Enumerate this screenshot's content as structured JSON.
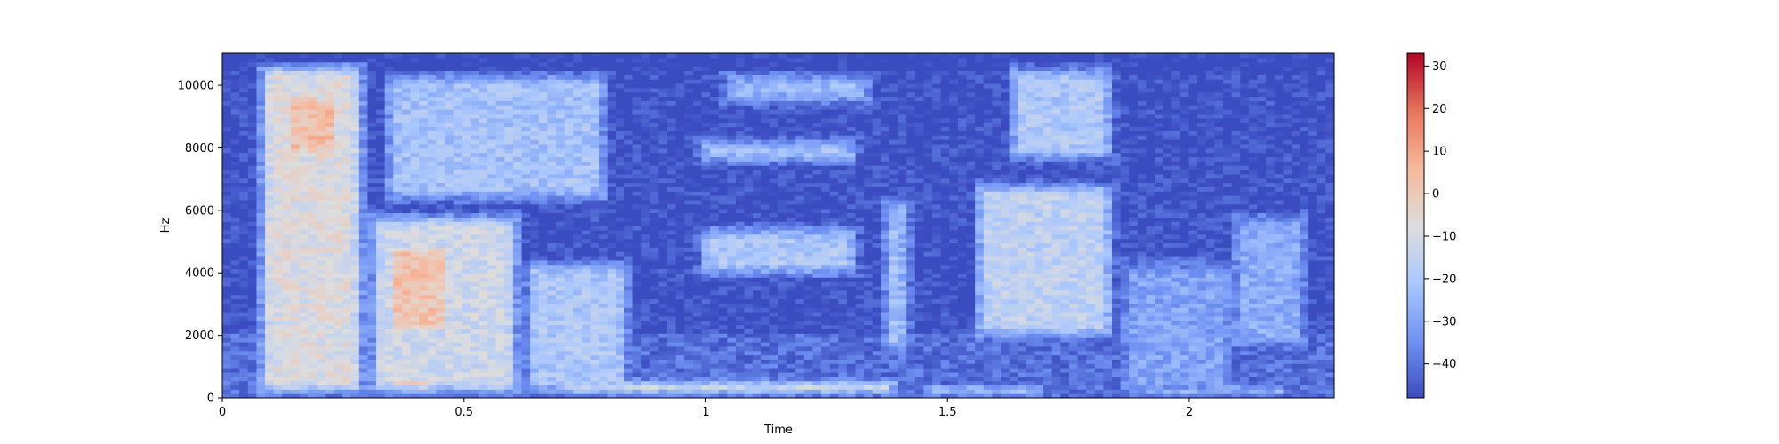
{
  "chart_data": {
    "type": "heatmap",
    "title": "",
    "xlabel": "Time",
    "ylabel": "Hz",
    "xlim": [
      0,
      2.3
    ],
    "ylim": [
      0,
      11025
    ],
    "x_ticks": [
      0,
      0.5,
      1,
      1.5,
      2
    ],
    "x_tick_labels": [
      "0",
      "0.5",
      "1",
      "1.5",
      "2"
    ],
    "y_ticks": [
      0,
      2000,
      4000,
      6000,
      8000,
      10000
    ],
    "y_tick_labels": [
      "0",
      "2000",
      "4000",
      "6000",
      "8000",
      "10000"
    ],
    "colormap": "coolwarm",
    "colorbar": {
      "vmin": -48,
      "vmax": 33,
      "ticks": [
        30,
        20,
        10,
        0,
        -10,
        -20,
        -30,
        -40
      ],
      "tick_labels": [
        "30",
        "20",
        "10",
        "0",
        "−10",
        "−20",
        "−30",
        "−40"
      ],
      "colors": [
        "#3b4cc0",
        "#6f92f3",
        "#aac7fd",
        "#dddddd",
        "#f7b89c",
        "#e7745b",
        "#b40426"
      ]
    },
    "grid": false,
    "regions": [
      {
        "t": [
          0.07,
          0.3
        ],
        "f": [
          0,
          10800
        ],
        "level": -8
      },
      {
        "t": [
          0.12,
          0.26
        ],
        "f": [
          7500,
          10000
        ],
        "level": 4
      },
      {
        "t": [
          0.3,
          0.62
        ],
        "f": [
          0,
          6000
        ],
        "level": -12
      },
      {
        "t": [
          0.33,
          0.48
        ],
        "f": [
          1800,
          5200
        ],
        "level": 2
      },
      {
        "t": [
          0.33,
          0.45
        ],
        "f": [
          100,
          900
        ],
        "level": 12
      },
      {
        "t": [
          0.33,
          0.8
        ],
        "f": [
          6200,
          10500
        ],
        "level": -22
      },
      {
        "t": [
          0.62,
          0.85
        ],
        "f": [
          0,
          4500
        ],
        "level": -20
      },
      {
        "t": [
          0.7,
          1.4
        ],
        "f": [
          0,
          700
        ],
        "level": 0
      },
      {
        "t": [
          0.98,
          1.3
        ],
        "f": [
          100,
          500
        ],
        "level": 8
      },
      {
        "t": [
          0.98,
          1.32
        ],
        "f": [
          3800,
          5600
        ],
        "level": -20
      },
      {
        "t": [
          0.98,
          1.32
        ],
        "f": [
          7400,
          8400
        ],
        "level": -20
      },
      {
        "t": [
          1.03,
          1.35
        ],
        "f": [
          9300,
          10500
        ],
        "level": -24
      },
      {
        "t": [
          1.36,
          1.43
        ],
        "f": [
          1300,
          6500
        ],
        "level": -22
      },
      {
        "t": [
          1.45,
          1.7
        ],
        "f": [
          0,
          500
        ],
        "level": 2
      },
      {
        "t": [
          1.55,
          1.65
        ],
        "f": [
          50,
          300
        ],
        "level": 10
      },
      {
        "t": [
          1.55,
          1.85
        ],
        "f": [
          1800,
          7000
        ],
        "level": -16
      },
      {
        "t": [
          1.62,
          1.85
        ],
        "f": [
          7500,
          10700
        ],
        "level": -20
      },
      {
        "t": [
          1.85,
          2.1
        ],
        "f": [
          0,
          4500
        ],
        "level": -30
      },
      {
        "t": [
          2.08,
          2.25
        ],
        "f": [
          1500,
          6000
        ],
        "level": -28
      },
      {
        "t": [
          1.9,
          2.2
        ],
        "f": [
          0,
          500
        ],
        "level": -5
      }
    ]
  }
}
